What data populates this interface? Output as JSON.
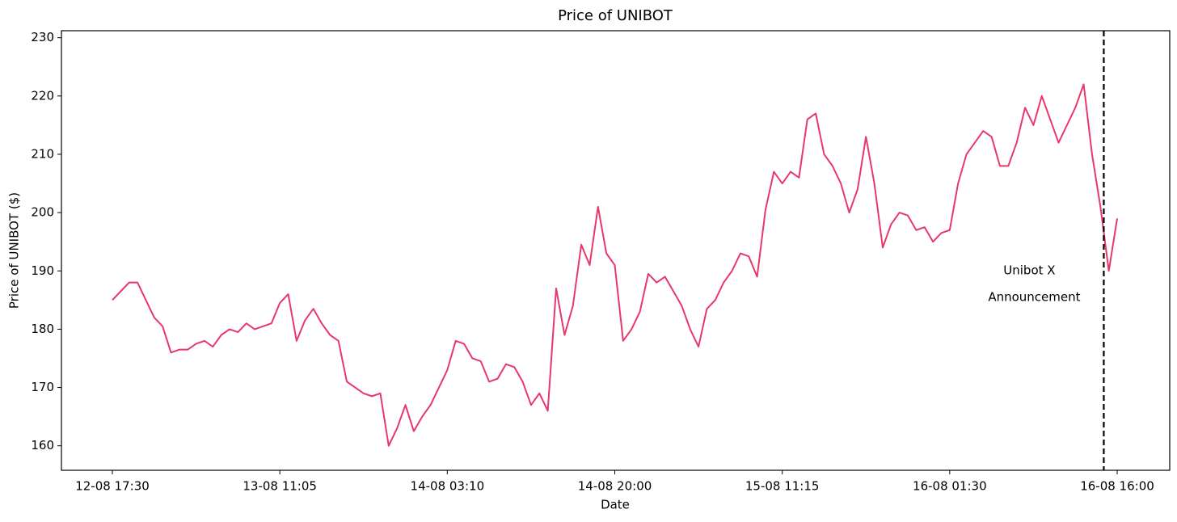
{
  "chart_data": {
    "type": "line",
    "title": "Price of UNIBOT",
    "xlabel": "Date",
    "ylabel": "Price of UNIBOT ($)",
    "categories": [
      "12-08 17:30",
      null,
      null,
      null,
      null,
      null,
      null,
      null,
      null,
      null,
      null,
      null,
      null,
      null,
      null,
      null,
      null,
      null,
      null,
      null,
      "13-08 11:05",
      null,
      null,
      null,
      null,
      null,
      null,
      null,
      null,
      null,
      null,
      null,
      null,
      null,
      null,
      null,
      null,
      null,
      null,
      null,
      "14-08 03:10",
      null,
      null,
      null,
      null,
      null,
      null,
      null,
      null,
      null,
      null,
      null,
      null,
      null,
      null,
      null,
      null,
      null,
      null,
      null,
      "14-08 20:00",
      null,
      null,
      null,
      null,
      null,
      null,
      null,
      null,
      null,
      null,
      null,
      null,
      null,
      null,
      null,
      null,
      null,
      null,
      null,
      "15-08 11:15",
      null,
      null,
      null,
      null,
      null,
      null,
      null,
      null,
      null,
      null,
      null,
      null,
      null,
      null,
      null,
      null,
      null,
      null,
      null,
      "16-08 01:30",
      null,
      null,
      null,
      null,
      null,
      null,
      null,
      null,
      null,
      null,
      null,
      null,
      null,
      null,
      null,
      null,
      null,
      null,
      null,
      "16-08 16:00"
    ],
    "values": [
      185,
      186.5,
      188,
      188,
      185,
      182,
      180.5,
      176,
      176.5,
      176.5,
      177.5,
      178,
      177,
      179,
      180,
      179.5,
      181,
      180,
      180.5,
      181,
      184.5,
      186,
      178,
      181.5,
      183.5,
      181,
      179,
      178,
      171,
      170,
      169,
      168.5,
      169,
      160,
      163,
      167,
      162.5,
      165,
      167,
      170,
      173,
      178,
      177.5,
      175,
      174.5,
      171,
      171.5,
      174,
      173.5,
      171,
      167,
      169,
      166,
      187,
      179,
      184,
      194.5,
      191,
      201,
      193,
      191,
      178,
      180,
      183,
      189.5,
      188,
      189,
      186.5,
      184,
      180,
      177,
      183.5,
      185,
      188,
      190,
      193,
      192.5,
      189,
      200.5,
      207,
      205,
      207,
      206,
      216,
      217,
      210,
      208,
      205,
      200,
      204,
      213,
      205,
      194,
      198,
      200,
      199.5,
      197,
      197.5,
      195,
      196.5,
      197,
      205,
      210,
      212,
      214,
      213,
      208,
      208,
      212,
      218,
      215,
      220,
      216,
      212,
      215,
      218,
      222,
      210,
      201,
      190,
      199
    ],
    "color": "#e8386b",
    "ylim": [
      155.8,
      231.2
    ],
    "yticks": [
      160,
      170,
      180,
      190,
      200,
      210,
      220,
      230
    ],
    "annotation": {
      "lines": [
        "Unibot X",
        "Announcement"
      ],
      "x": 118.4
    }
  }
}
